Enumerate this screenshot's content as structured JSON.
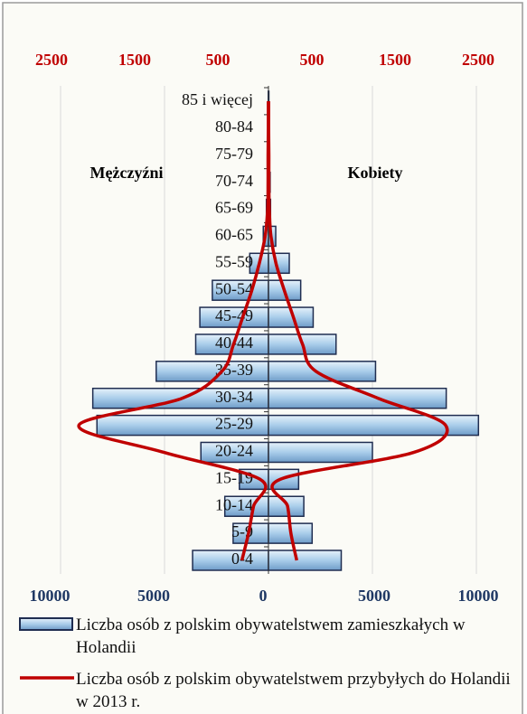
{
  "chart_data": {
    "type": "pyramid",
    "categories": [
      "0-4",
      "5-9",
      "10-14",
      "15-19",
      "20-24",
      "25-29",
      "30-34",
      "35-39",
      "40-44",
      "45-49",
      "50-54",
      "55-59",
      "60-65",
      "65-69",
      "70-74",
      "75-79",
      "80-84",
      "85 i więcej"
    ],
    "annotations": [
      "Mężczyźni",
      "Kobiety"
    ],
    "series": [
      {
        "name": "Liczba osób z polskim obywatelstwem zamieszkałych w Holandii",
        "kind": "bar",
        "color": "#a9cdea",
        "left": [
          -3650,
          -1700,
          -2100,
          -1400,
          -3250,
          -8250,
          -8450,
          -5400,
          -3500,
          -3300,
          -2700,
          -900,
          -250,
          -100,
          -50,
          -30,
          -20,
          -10
        ],
        "right": [
          3500,
          2100,
          1700,
          1450,
          5000,
          10100,
          8550,
          5150,
          3250,
          2150,
          1550,
          1000,
          350,
          100,
          80,
          50,
          30,
          20
        ]
      },
      {
        "name": "Liczba osób z polskim obywatelstwem przybyłych do Holandii w 2013 r.",
        "kind": "line",
        "axis": "x2",
        "color": "#c00000",
        "left": [
          -320,
          -240,
          -180,
          -100,
          -1260,
          -2280,
          -1040,
          -560,
          -420,
          -310,
          -200,
          -110,
          -40,
          -10,
          -5,
          -5,
          -2,
          -2
        ],
        "right": [
          340,
          270,
          230,
          140,
          1750,
          2130,
          1320,
          570,
          410,
          300,
          190,
          90,
          30,
          10,
          5,
          5,
          2,
          2
        ]
      }
    ],
    "xlim": [
      -10000,
      10000
    ],
    "xticks": [
      {
        "value": -10000,
        "label": "10000"
      },
      {
        "value": -5000,
        "label": "5000"
      },
      0,
      5000,
      10000
    ],
    "x2lim": [
      -2500,
      2500
    ],
    "x2ticks": [
      {
        "value": -2500,
        "label": "2500"
      },
      {
        "value": -1500,
        "label": "1500"
      },
      {
        "value": -500,
        "label": "500"
      },
      500,
      1500,
      2500
    ],
    "grid": true
  }
}
